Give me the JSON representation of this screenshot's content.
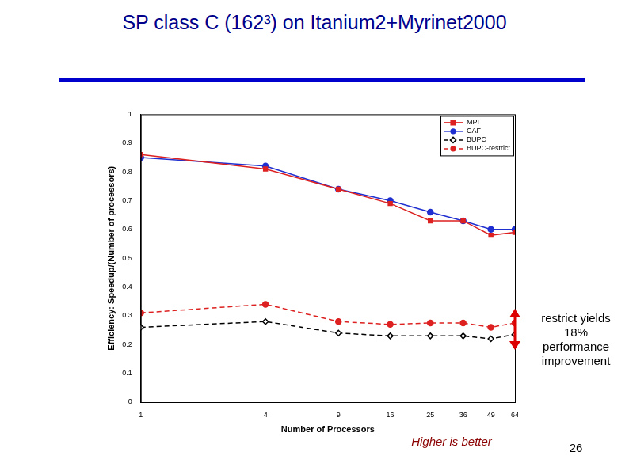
{
  "chart_data": {
    "type": "line",
    "title": "SP class C (162³) on Itanium2+Myrinet2000",
    "x_label": "Number of Processors",
    "y_label": "Efficiency: Speedup/(Number of processors)",
    "x": [
      1,
      4,
      9,
      16,
      25,
      36,
      49,
      64
    ],
    "series": [
      {
        "name": "MPI",
        "color": "#dd2020",
        "marker": "square",
        "line_style": "solid",
        "values": [
          0.86,
          0.81,
          0.74,
          0.69,
          0.63,
          0.63,
          0.58,
          0.59
        ]
      },
      {
        "name": "CAF",
        "color": "#1f2fd0",
        "marker": "circle",
        "line_style": "solid",
        "values": [
          0.85,
          0.82,
          0.74,
          0.7,
          0.66,
          0.63,
          0.6,
          0.6
        ]
      },
      {
        "name": "BUPC",
        "color": "#000000",
        "marker": "diamond",
        "line_style": "dashed",
        "values": [
          0.26,
          0.28,
          0.24,
          0.23,
          0.23,
          0.23,
          0.22,
          0.235
        ]
      },
      {
        "name": "BUPC-restrict",
        "color": "#dd2020",
        "marker": "circle",
        "line_style": "dashed",
        "values": [
          0.31,
          0.34,
          0.28,
          0.27,
          0.275,
          0.275,
          0.26,
          0.275
        ]
      }
    ],
    "xlim": [
      1,
      64
    ],
    "xticks": [
      1,
      4,
      9,
      16,
      25,
      36,
      49,
      64
    ],
    "ylim": [
      0,
      1
    ],
    "yticks": [
      0,
      0.1,
      0.2,
      0.3,
      0.4,
      0.5,
      0.6,
      0.7,
      0.8,
      0.9,
      1
    ],
    "log": "x",
    "grid": false,
    "legend": "upper right",
    "annotations": [
      "restrict yields 18% performance improvement",
      "Higher is better"
    ]
  },
  "page_number": 26
}
